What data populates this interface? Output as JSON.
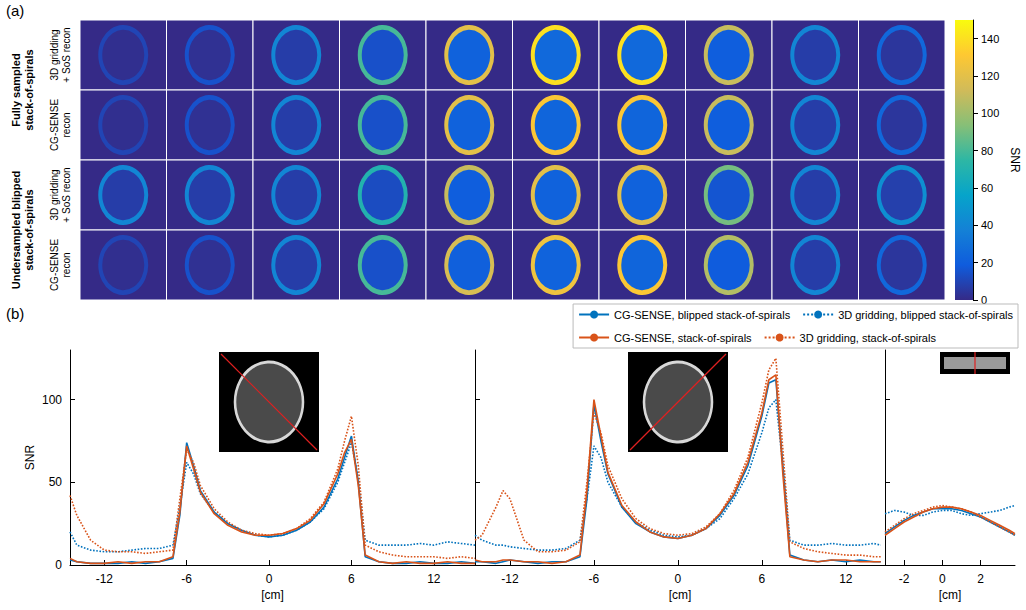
{
  "panel_a": {
    "label": "(a)",
    "colorbar": {
      "label": "SNR",
      "lim": [
        0,
        150
      ],
      "ticks": [
        0,
        20,
        40,
        60,
        80,
        100,
        120,
        140
      ]
    },
    "row_groups": [
      {
        "label": "Fully sampled stack-of-spirals",
        "rows": [
          {
            "label": "3D gridding + SoS recon",
            "peak_snr": [
              10,
              15,
              40,
              80,
              120,
              140,
              140,
              110,
              40,
              25
            ]
          },
          {
            "label": "CG-SENSE recon",
            "peak_snr": [
              10,
              15,
              40,
              80,
              120,
              130,
              130,
              110,
              40,
              25
            ]
          }
        ]
      },
      {
        "label": "Undersampled blipped stack-of-spirals",
        "rows": [
          {
            "label": "3D gridding + SoS recon",
            "peak_snr": [
              40,
              40,
              40,
              70,
              110,
              120,
              120,
              90,
              40,
              45
            ]
          },
          {
            "label": "CG-SENSE recon",
            "peak_snr": [
              10,
              15,
              40,
              80,
              115,
              125,
              130,
              105,
              40,
              25
            ]
          }
        ]
      }
    ]
  },
  "panel_b_label": "(b)",
  "chart_data": [
    {
      "type": "line",
      "xlabel": "[cm]",
      "ylabel": "SNR",
      "grid": false,
      "tick_labels": true,
      "xlim": [
        -14.5,
        15
      ],
      "xticks": [
        -12,
        -6,
        0,
        6,
        12
      ],
      "ylim": [
        0,
        130
      ],
      "yticks": [
        0,
        50,
        100
      ],
      "x": [
        -14.5,
        -14,
        -13,
        -12,
        -11,
        -10,
        -9,
        -8,
        -7,
        -6.5,
        -6,
        -5.5,
        -5,
        -4,
        -3,
        -2,
        -1,
        0,
        1,
        2,
        3,
        4,
        5,
        5.5,
        6,
        6.5,
        7,
        8,
        9,
        10,
        11,
        12,
        13,
        14,
        15
      ],
      "series": [
        {
          "name": "CG-SENSE, blipped stack-of-spirals",
          "color": "#0072bd",
          "line_style": "solid",
          "values": [
            3,
            2,
            1,
            1,
            1,
            2,
            1,
            2,
            4,
            30,
            74,
            60,
            45,
            32,
            25,
            21,
            18,
            17,
            18,
            21,
            26,
            35,
            52,
            65,
            78,
            50,
            5,
            2,
            1,
            1,
            2,
            1,
            1,
            2,
            1
          ]
        },
        {
          "name": "3D gridding, blipped stack-of-spirals",
          "color": "#0072bd",
          "line_style": "dotted",
          "values": [
            20,
            12,
            9,
            8,
            8,
            9,
            10,
            10,
            12,
            35,
            62,
            55,
            43,
            32,
            25,
            21,
            18,
            17,
            18,
            21,
            26,
            34,
            50,
            62,
            74,
            52,
            15,
            12,
            12,
            12,
            13,
            12,
            14,
            13,
            12
          ]
        },
        {
          "name": "CG-SENSE, stack-of-spirals",
          "color": "#d95319",
          "line_style": "solid",
          "values": [
            4,
            2,
            1,
            1,
            2,
            1,
            2,
            2,
            5,
            32,
            72,
            58,
            44,
            31,
            24,
            20,
            18,
            18,
            19,
            22,
            27,
            37,
            55,
            68,
            76,
            48,
            6,
            2,
            1,
            2,
            1,
            1,
            2,
            1,
            1
          ]
        },
        {
          "name": "3D gridding, stack-of-spirals",
          "color": "#d95319",
          "line_style": "dotted",
          "values": [
            42,
            30,
            15,
            9,
            8,
            8,
            7,
            8,
            9,
            40,
            70,
            62,
            48,
            34,
            26,
            21,
            19,
            18,
            19,
            22,
            28,
            38,
            58,
            75,
            90,
            60,
            12,
            8,
            6,
            5,
            5,
            5,
            4,
            5,
            4
          ]
        }
      ]
    },
    {
      "type": "line",
      "xlabel": "[cm]",
      "grid": false,
      "tick_labels": "x",
      "xlim": [
        -14.5,
        14.8
      ],
      "xticks": [
        -12,
        -6,
        0,
        6,
        12
      ],
      "ylim": [
        0,
        130
      ],
      "yticks": [
        0,
        50,
        100
      ],
      "x": [
        -14.5,
        -14,
        -13,
        -12.5,
        -12,
        -11,
        -10,
        -9,
        -8,
        -7,
        -6.5,
        -6,
        -5.5,
        -5,
        -4,
        -3,
        -2,
        -1,
        0,
        1,
        2,
        3,
        4,
        5,
        6,
        6.5,
        7,
        7.5,
        8,
        9,
        10,
        11,
        12,
        13,
        14,
        14.5
      ],
      "series": [
        {
          "name": "CG-SENSE, blipped stack-of-spirals",
          "color": "#0072bd",
          "line_style": "solid",
          "values": [
            2,
            2,
            1,
            2,
            3,
            2,
            1,
            2,
            2,
            5,
            40,
            97,
            75,
            55,
            35,
            25,
            20,
            17,
            16,
            18,
            22,
            30,
            42,
            60,
            90,
            110,
            112,
            60,
            6,
            3,
            2,
            3,
            2,
            3,
            2,
            2
          ]
        },
        {
          "name": "3D gridding, blipped stack-of-spirals",
          "color": "#0072bd",
          "line_style": "dotted",
          "values": [
            18,
            15,
            12,
            12,
            11,
            10,
            9,
            9,
            10,
            15,
            40,
            72,
            65,
            50,
            35,
            26,
            21,
            18,
            17,
            18,
            22,
            28,
            40,
            55,
            80,
            95,
            100,
            60,
            15,
            12,
            12,
            13,
            12,
            12,
            13,
            12
          ]
        },
        {
          "name": "CG-SENSE, stack-of-spirals",
          "color": "#d95319",
          "line_style": "solid",
          "values": [
            3,
            2,
            2,
            3,
            3,
            2,
            2,
            1,
            2,
            6,
            45,
            100,
            78,
            56,
            36,
            26,
            20,
            17,
            16,
            18,
            22,
            31,
            43,
            62,
            92,
            112,
            115,
            55,
            5,
            3,
            2,
            3,
            3,
            2,
            2,
            2
          ]
        },
        {
          "name": "3D gridding, stack-of-spirals",
          "color": "#d95319",
          "line_style": "dotted",
          "values": [
            15,
            18,
            35,
            45,
            40,
            15,
            8,
            8,
            9,
            14,
            50,
            92,
            80,
            60,
            40,
            28,
            22,
            19,
            18,
            19,
            23,
            31,
            45,
            65,
            98,
            118,
            125,
            70,
            14,
            10,
            8,
            7,
            6,
            6,
            5,
            5
          ]
        }
      ]
    },
    {
      "type": "line",
      "xlabel": "[cm]",
      "grid": false,
      "tick_labels": "x",
      "legend": "upper right",
      "xlim": [
        -3,
        3.8
      ],
      "xticks": [
        -2,
        0,
        2
      ],
      "ylim": [
        0,
        130
      ],
      "yticks": [
        0,
        50,
        100
      ],
      "x": [
        -3,
        -2.5,
        -2,
        -1.5,
        -1,
        -0.5,
        0,
        0.5,
        1,
        1.5,
        2,
        2.5,
        3,
        3.5,
        3.8
      ],
      "series": [
        {
          "name": "CG-SENSE, blipped stack-of-spirals",
          "color": "#0072bd",
          "line_style": "solid",
          "values": [
            19,
            23,
            27,
            30,
            32,
            34,
            34,
            34,
            33,
            31,
            29,
            26,
            23,
            20,
            18
          ]
        },
        {
          "name": "3D gridding, blipped stack-of-spirals",
          "color": "#0072bd",
          "line_style": "dotted",
          "values": [
            31,
            33,
            32,
            30,
            30,
            32,
            33,
            33,
            31,
            30,
            31,
            32,
            33,
            35,
            36
          ]
        },
        {
          "name": "CG-SENSE, stack-of-spirals",
          "color": "#d95319",
          "line_style": "solid",
          "values": [
            18,
            22,
            26,
            29,
            32,
            34,
            35,
            35,
            34,
            32,
            30,
            27,
            24,
            21,
            19
          ]
        },
        {
          "name": "3D gridding, stack-of-spirals",
          "color": "#d95319",
          "line_style": "dotted",
          "values": [
            20,
            24,
            28,
            31,
            33,
            35,
            36,
            35,
            34,
            32,
            29,
            26,
            23,
            20,
            18
          ]
        }
      ]
    }
  ]
}
